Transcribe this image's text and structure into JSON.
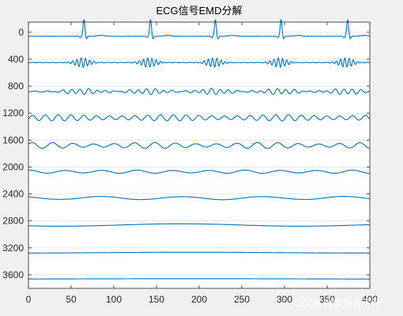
{
  "window": {
    "background": "#f0f0f0"
  },
  "chart_data": {
    "type": "line",
    "title": "ECG信号EMD分解",
    "xlabel": "",
    "ylabel": "",
    "xlim": [
      0,
      400
    ],
    "ylim": [
      3800,
      -150
    ],
    "y_direction": "reversed",
    "grid": "horizontal",
    "x_ticks": [
      0,
      50,
      100,
      150,
      200,
      250,
      300,
      350,
      400
    ],
    "y_ticks": [
      0,
      400,
      800,
      1200,
      1600,
      2000,
      2400,
      2800,
      3200,
      3600
    ],
    "line_color": "#0072bd",
    "series": [
      {
        "offset": 60,
        "kind": "ecg",
        "peaks": [
          65,
          143,
          219,
          296,
          374
        ],
        "peak_height": 250
      },
      {
        "offset": 450,
        "kind": "imf_bursts",
        "centers": [
          63,
          141,
          217,
          294,
          372
        ],
        "amplitude": 70,
        "width": 8,
        "period": 5
      },
      {
        "offset": 880,
        "kind": "imf_bursts",
        "centers": [
          63,
          141,
          217,
          294,
          372
        ],
        "amplitude": 40,
        "width": 18,
        "period": 10,
        "baseline_amp": 8
      },
      {
        "offset": 1270,
        "kind": "imf_oscillation",
        "amplitude": 45,
        "period": 15,
        "modulation": 0.4
      },
      {
        "offset": 1680,
        "kind": "imf_oscillation",
        "amplitude": 45,
        "period": 24,
        "modulation": 0.5
      },
      {
        "offset": 2070,
        "kind": "imf_oscillation",
        "amplitude": 25,
        "period": 42,
        "modulation": 0.3
      },
      {
        "offset": 2460,
        "kind": "imf_oscillation",
        "amplitude": 25,
        "period": 95,
        "modulation": 0.2
      },
      {
        "offset": 2860,
        "kind": "trend",
        "amplitude": 18,
        "period": 280
      },
      {
        "offset": 3270,
        "kind": "trend",
        "amplitude": 6,
        "period": 400
      },
      {
        "offset": 3660,
        "kind": "trend",
        "amplitude": 3,
        "period": 600
      }
    ]
  },
  "watermark": {
    "text": "CSDN @紫到长不胖"
  }
}
